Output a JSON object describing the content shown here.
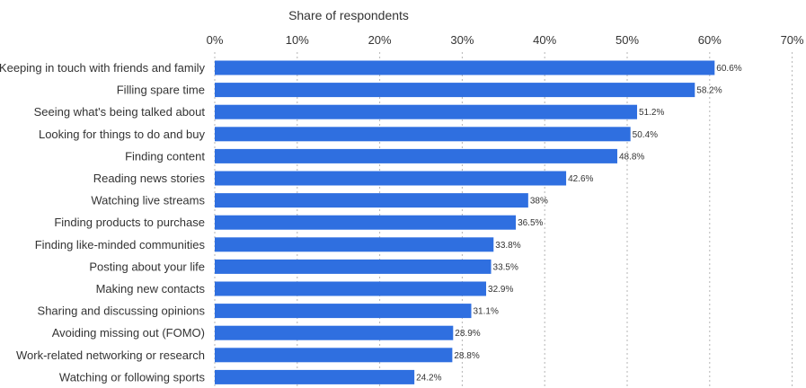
{
  "chart_data": {
    "type": "bar",
    "orientation": "horizontal",
    "xlabel": "Share of respondents",
    "xlim": [
      0,
      70
    ],
    "ticks": [
      0,
      10,
      20,
      30,
      40,
      50,
      60,
      70
    ],
    "tick_labels": [
      "0%",
      "10%",
      "20%",
      "30%",
      "40%",
      "50%",
      "60%",
      "70%"
    ],
    "grid": true,
    "bar_color": "#2f6fe0",
    "categories": [
      "Keeping in touch with friends and family",
      "Filling spare time",
      "Seeing what's being talked about",
      "Looking for things to do and buy",
      "Finding content",
      "Reading news stories",
      "Watching live streams",
      "Finding products to purchase",
      "Finding like-minded communities",
      "Posting about your life",
      "Making new contacts",
      "Sharing and discussing opinions",
      "Avoiding missing out (FOMO)",
      "Work-related networking or research",
      "Watching or following sports"
    ],
    "values": [
      60.6,
      58.2,
      51.2,
      50.4,
      48.8,
      42.6,
      38,
      36.5,
      33.8,
      33.5,
      32.9,
      31.1,
      28.9,
      28.8,
      24.2
    ],
    "value_labels": [
      "60.6%",
      "58.2%",
      "51.2%",
      "50.4%",
      "48.8%",
      "42.6%",
      "38%",
      "36.5%",
      "33.8%",
      "33.5%",
      "32.9%",
      "31.1%",
      "28.9%",
      "28.8%",
      "24.2%"
    ]
  }
}
